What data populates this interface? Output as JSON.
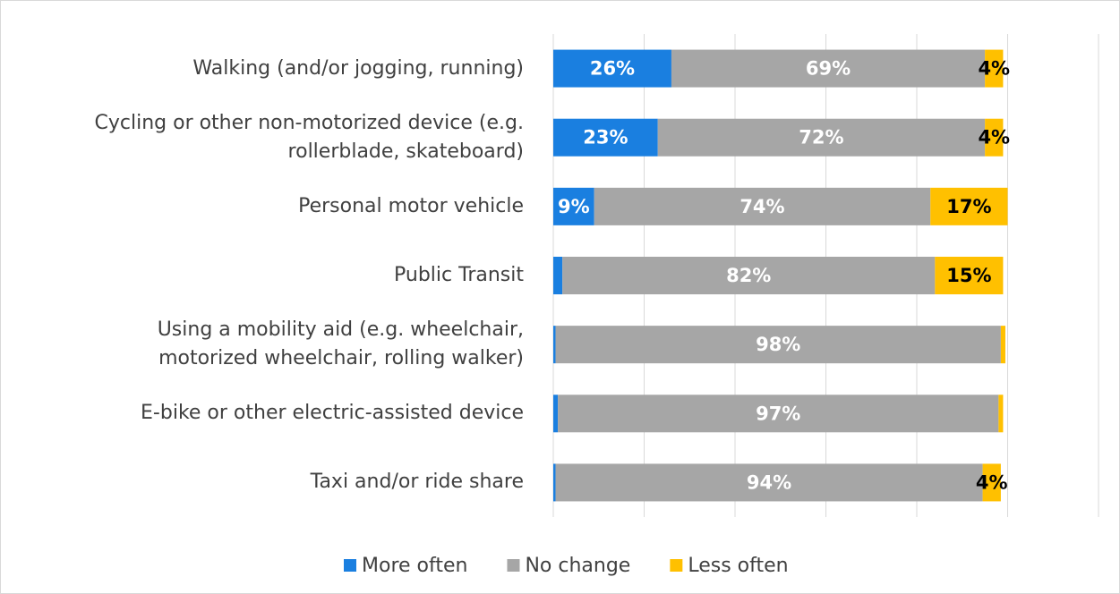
{
  "chart_data": {
    "type": "stacked-barh",
    "categories": [
      "Walking (and/or jogging, running)",
      "Cycling or other non-motorized device (e.g.\nrollerblade, skateboard)",
      "Personal motor vehicle",
      "Public Transit",
      "Using a mobility aid (e.g. wheelchair,\nmotorized wheelchair, rolling walker)",
      "E-bike or other electric-assisted device",
      "Taxi and/or ride share"
    ],
    "series": [
      {
        "name": "More often",
        "color": "#1a7fe0",
        "values": [
          26,
          23,
          9,
          2,
          0.5,
          1,
          0.5
        ],
        "value_labels": [
          "26%",
          "23%",
          "9%",
          null,
          null,
          null,
          null
        ]
      },
      {
        "name": "No change",
        "color": "#a6a6a6",
        "values": [
          69,
          72,
          74,
          82,
          98,
          97,
          94
        ],
        "value_labels": [
          "69%",
          "72%",
          "74%",
          "82%",
          "98%",
          "97%",
          "94%"
        ]
      },
      {
        "name": "Less often",
        "color": "#ffc000",
        "values": [
          4,
          4,
          17,
          15,
          1,
          1,
          4
        ],
        "value_labels": [
          "4%",
          "4%",
          "17%",
          "15%",
          null,
          null,
          "4%"
        ]
      }
    ],
    "xlim": [
      0,
      120
    ],
    "xticks": [
      0,
      20,
      40,
      60,
      80,
      100,
      120
    ],
    "grid": true,
    "legend": "bottom"
  }
}
